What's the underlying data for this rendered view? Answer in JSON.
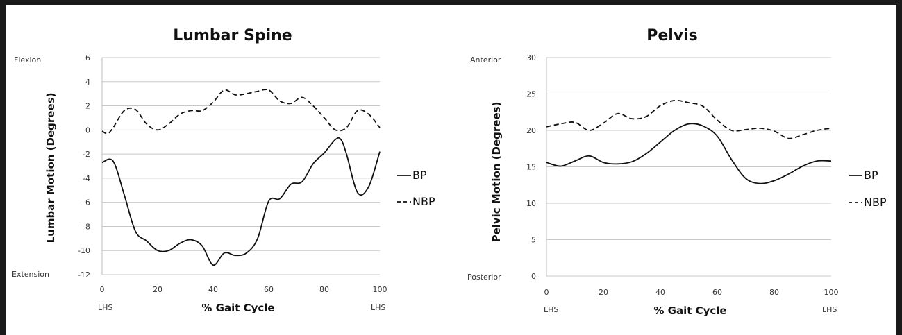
{
  "chart_data": [
    {
      "type": "line",
      "title": "Lumbar Spine",
      "ylabel": "Lumbar Motion (Degrees)",
      "xlabel": "% Gait Cycle",
      "ylim": [
        -12,
        6
      ],
      "xlim": [
        0,
        100
      ],
      "y_ticks": [
        "6",
        "4",
        "2",
        "0",
        "-2",
        "-4",
        "-6",
        "-8",
        "-10",
        "-12"
      ],
      "x_ticks": [
        "0",
        "20",
        "40",
        "60",
        "80",
        "100"
      ],
      "x_start_label": "LHS",
      "x_end_label": "LHS",
      "y_top_label": "Flexion",
      "y_bottom_label": "Extension",
      "grid": true,
      "legend_position": "right",
      "series": [
        {
          "name": "BP",
          "style": "solid",
          "color": "#111111",
          "x": [
            0,
            4,
            8,
            12,
            16,
            20,
            24,
            28,
            32,
            36,
            40,
            44,
            48,
            52,
            56,
            60,
            64,
            68,
            72,
            76,
            80,
            84,
            86,
            88,
            92,
            96,
            100
          ],
          "y": [
            -2.7,
            -2.6,
            -5.4,
            -8.4,
            -9.2,
            -10.0,
            -10.0,
            -9.4,
            -9.1,
            -9.6,
            -11.2,
            -10.2,
            -10.4,
            -10.2,
            -9.0,
            -5.9,
            -5.7,
            -4.5,
            -4.3,
            -2.8,
            -1.9,
            -0.8,
            -0.8,
            -2.0,
            -5.2,
            -4.7,
            -1.8
          ]
        },
        {
          "name": "NBP",
          "style": "dashed",
          "color": "#111111",
          "x": [
            0,
            2,
            4,
            8,
            12,
            16,
            20,
            24,
            28,
            32,
            36,
            40,
            44,
            48,
            52,
            56,
            60,
            64,
            68,
            72,
            76,
            80,
            84,
            88,
            92,
            96,
            100
          ],
          "y": [
            -0.1,
            -0.3,
            0.2,
            1.6,
            1.7,
            0.5,
            0.0,
            0.5,
            1.3,
            1.6,
            1.6,
            2.3,
            3.3,
            2.9,
            3.0,
            3.2,
            3.3,
            2.4,
            2.2,
            2.7,
            2.0,
            1.0,
            0.0,
            0.2,
            1.6,
            1.3,
            0.2
          ]
        }
      ]
    },
    {
      "type": "line",
      "title": "Pelvis",
      "ylabel": "Pelvic Motion (Degrees)",
      "xlabel": "% Gait Cycle",
      "ylim": [
        0,
        30
      ],
      "xlim": [
        0,
        100
      ],
      "y_ticks": [
        "30",
        "25",
        "20",
        "15",
        "10",
        "5",
        "0"
      ],
      "x_ticks": [
        "0",
        "20",
        "40",
        "60",
        "80",
        "100"
      ],
      "x_start_label": "LHS",
      "x_end_label": "LHS",
      "y_top_label": "Anterior",
      "y_bottom_label": "Posterior",
      "grid": true,
      "legend_position": "right",
      "series": [
        {
          "name": "BP",
          "style": "solid",
          "color": "#111111",
          "x": [
            0,
            5,
            10,
            15,
            20,
            25,
            30,
            35,
            40,
            45,
            50,
            55,
            60,
            65,
            70,
            75,
            80,
            85,
            90,
            95,
            100
          ],
          "y": [
            15.6,
            15.1,
            15.8,
            16.5,
            15.6,
            15.4,
            15.7,
            16.8,
            18.4,
            20.0,
            20.9,
            20.6,
            19.2,
            16.0,
            13.4,
            12.7,
            13.1,
            14.0,
            15.1,
            15.8,
            15.8
          ]
        },
        {
          "name": "NBP",
          "style": "dashed",
          "color": "#111111",
          "x": [
            0,
            5,
            10,
            15,
            20,
            25,
            30,
            35,
            40,
            45,
            50,
            55,
            60,
            65,
            70,
            75,
            80,
            85,
            90,
            95,
            100
          ],
          "y": [
            20.5,
            20.9,
            21.1,
            20.0,
            21.0,
            22.3,
            21.6,
            21.9,
            23.4,
            24.1,
            23.8,
            23.3,
            21.4,
            20.0,
            20.1,
            20.3,
            19.9,
            18.9,
            19.4,
            20.0,
            20.3
          ]
        }
      ]
    }
  ]
}
